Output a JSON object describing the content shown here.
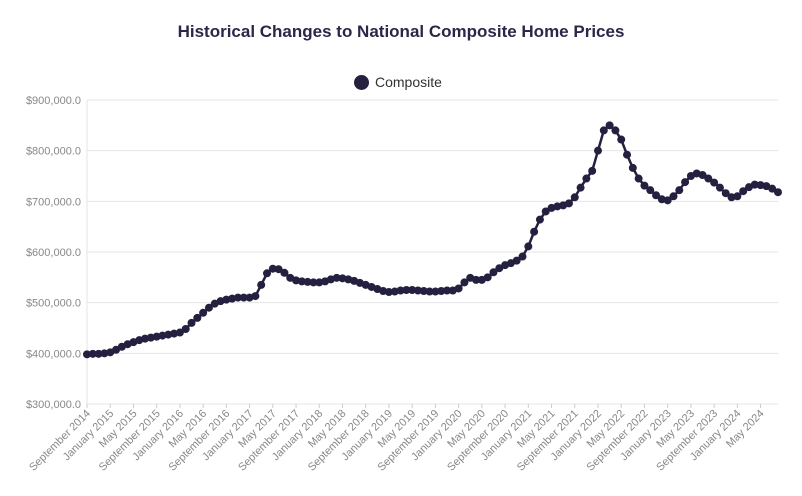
{
  "chart_data": {
    "type": "line",
    "title": "Historical Changes to National Composite Home Prices",
    "xlabel": "",
    "ylabel": "",
    "ylim": [
      300000,
      900000
    ],
    "y_ticks": [
      "$300,000.0",
      "$400,000.0",
      "$500,000.0",
      "$600,000.0",
      "$700,000.0",
      "$800,000.0",
      "$900,000.0"
    ],
    "y_tick_values": [
      300000,
      400000,
      500000,
      600000,
      700000,
      800000,
      900000
    ],
    "legend_position": "top-center",
    "grid": "horizontal",
    "x_tick_labels": [
      "September 2014",
      "January 2015",
      "May 2015",
      "September 2015",
      "January 2016",
      "May 2016",
      "September 2016",
      "January 2017",
      "May 2017",
      "September 2017",
      "January 2018",
      "May 2018",
      "September 2018",
      "January 2019",
      "May 2019",
      "September 2019",
      "January 2020",
      "May 2020",
      "September 2020",
      "January 2021",
      "May 2021",
      "September 2021",
      "January 2022",
      "May 2022",
      "September 2022",
      "January 2023",
      "May 2023",
      "September 2023",
      "January 2024",
      "May 2024"
    ],
    "x_start": "September 2014",
    "series": [
      {
        "name": "Composite",
        "color": "#23213f",
        "values": [
          398000,
          399000,
          399000,
          400000,
          402000,
          407000,
          413000,
          418000,
          422000,
          426000,
          429000,
          431000,
          433000,
          435000,
          437000,
          439000,
          441000,
          448000,
          460000,
          470000,
          480000,
          490000,
          498000,
          503000,
          506000,
          508000,
          510000,
          510000,
          510000,
          513000,
          535000,
          558000,
          567000,
          566000,
          559000,
          549000,
          544000,
          542000,
          541000,
          540000,
          540000,
          542000,
          546000,
          549000,
          548000,
          546000,
          543000,
          539000,
          535000,
          531000,
          527000,
          523000,
          521000,
          522000,
          524000,
          525000,
          525000,
          524000,
          523000,
          522000,
          522000,
          523000,
          524000,
          524000,
          528000,
          540000,
          549000,
          545000,
          545000,
          550000,
          560000,
          568000,
          574000,
          578000,
          583000,
          591000,
          611000,
          640000,
          664000,
          680000,
          687000,
          690000,
          692000,
          696000,
          708000,
          727000,
          745000,
          760000,
          800000,
          840000,
          850000,
          840000,
          822000,
          792000,
          766000,
          745000,
          731000,
          722000,
          712000,
          704000,
          702000,
          710000,
          722000,
          738000,
          750000,
          755000,
          752000,
          745000,
          737000,
          727000,
          716000,
          708000,
          710000,
          720000,
          728000,
          733000,
          732000,
          730000,
          725000,
          718000
        ]
      }
    ]
  }
}
